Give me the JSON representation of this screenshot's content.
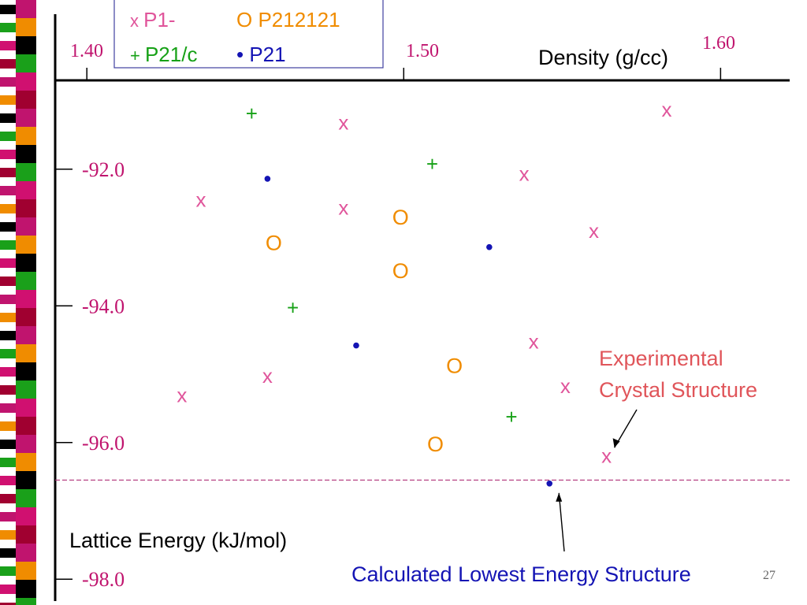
{
  "chart_data": {
    "type": "scatter",
    "xlabel": "Density (g/cc)",
    "ylabel": "Lattice Energy (kJ/mol)",
    "x_ticks": [
      {
        "value": 1.4,
        "label": "1.40"
      },
      {
        "value": 1.5,
        "label": "1.50"
      },
      {
        "value": 1.6,
        "label": "1.60"
      }
    ],
    "y_ticks": [
      {
        "value": -92.0,
        "label": "-92.0"
      },
      {
        "value": -94.0,
        "label": "-94.0"
      },
      {
        "value": -96.0,
        "label": "-96.0"
      },
      {
        "value": -98.0,
        "label": "-98.0"
      }
    ],
    "xlim": [
      1.39,
      1.6218
    ],
    "ylim": [
      -98.32,
      -90.7
    ],
    "x_axis_position": "top",
    "grid": false,
    "series": [
      {
        "name": "P1-",
        "marker_glyph": "x",
        "color": "#e0559b",
        "points": [
          [
            1.436,
            -92.44
          ],
          [
            1.43,
            -95.3
          ],
          [
            1.457,
            -95.02
          ],
          [
            1.481,
            -91.31
          ],
          [
            1.481,
            -92.56
          ],
          [
            1.538,
            -92.06
          ],
          [
            1.541,
            -94.52
          ],
          [
            1.551,
            -95.17
          ],
          [
            1.56,
            -92.9
          ],
          [
            1.564,
            -96.19
          ],
          [
            1.583,
            -91.12
          ]
        ]
      },
      {
        "name": "P212121",
        "marker_glyph": "O",
        "color": "#f08c00",
        "points": [
          [
            1.459,
            -93.07
          ],
          [
            1.499,
            -92.7
          ],
          [
            1.499,
            -93.48
          ],
          [
            1.516,
            -94.87
          ],
          [
            1.51,
            -96.02
          ]
        ]
      },
      {
        "name": "P21/c",
        "marker_glyph": "+",
        "color": "#17a117",
        "points": [
          [
            1.452,
            -91.18
          ],
          [
            1.465,
            -94.02
          ],
          [
            1.509,
            -91.92
          ],
          [
            1.534,
            -95.62
          ]
        ]
      },
      {
        "name": "P21",
        "marker_glyph": "•",
        "color": "#1414b4",
        "points": [
          [
            1.457,
            -92.14
          ],
          [
            1.485,
            -94.58
          ],
          [
            1.527,
            -93.14
          ],
          [
            1.546,
            -96.6
          ]
        ]
      }
    ],
    "reference_line": {
      "y": -96.55,
      "color": "#b0337a"
    },
    "annotations": [
      {
        "text": "Experimental Crystal Structure",
        "color": "#e0555a",
        "points_to": [
          1.564,
          -96.19
        ]
      },
      {
        "text": "Calculated Lowest Energy Structure",
        "color": "#1414b4",
        "points_to": [
          1.546,
          -96.6
        ]
      }
    ],
    "legend": {
      "placement": "top-left"
    }
  },
  "slide": {
    "page_number": "27"
  },
  "colors": {
    "axis": "#000000",
    "x_axis_label": "#c0146e",
    "y_axis_label": "#c0146e",
    "legend_border": "#4040a0",
    "strip": [
      "#c0146e",
      "#f08c00",
      "#000000",
      "#1aa01a",
      "#d01070",
      "#a00030"
    ]
  }
}
